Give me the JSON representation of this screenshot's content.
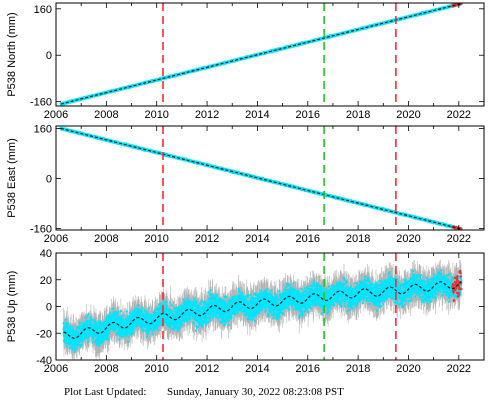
{
  "footer": {
    "label": "Plot Last Updated:",
    "timestamp": "Sunday, January 30, 2022 08:23:08 PST"
  },
  "colors": {
    "observations": "#00e5ff",
    "error_bars": "#b4b4b4",
    "model": "#1a1a1a",
    "recent_obs": "#ff2a2a",
    "event_red": "#ff2a2a",
    "event_green": "#22c422",
    "frame": "#000000"
  },
  "chart_data": [
    {
      "type": "scatter",
      "ylabel": "P538 North (mm)",
      "xlim": [
        2006.0,
        2023.0
      ],
      "ylim": [
        -175,
        180
      ],
      "yticks": [
        -160,
        0,
        160
      ],
      "xticks": [
        2006,
        2008,
        2010,
        2012,
        2014,
        2016,
        2018,
        2020,
        2022
      ],
      "trend_start": [
        2006.2,
        -168
      ],
      "trend_end": [
        2022.1,
        178
      ],
      "events": [
        {
          "x": 2010.25,
          "color": "red"
        },
        {
          "x": 2016.65,
          "color": "green"
        },
        {
          "x": 2019.5,
          "color": "red"
        }
      ],
      "grid": false
    },
    {
      "type": "scatter",
      "ylabel": "P538 East (mm)",
      "xlim": [
        2006.0,
        2023.0
      ],
      "ylim": [
        -165,
        168
      ],
      "yticks": [
        -160,
        0,
        160
      ],
      "xticks": [
        2006,
        2008,
        2010,
        2012,
        2014,
        2016,
        2018,
        2020,
        2022
      ],
      "trend_start": [
        2006.2,
        160
      ],
      "trend_end": [
        2022.1,
        -162
      ],
      "events": [
        {
          "x": 2010.25,
          "color": "red"
        },
        {
          "x": 2016.65,
          "color": "green"
        },
        {
          "x": 2019.5,
          "color": "red"
        }
      ],
      "grid": false
    },
    {
      "type": "scatter",
      "ylabel": "P538 Up (mm)",
      "xlim": [
        2006.0,
        2023.0
      ],
      "ylim": [
        -40,
        40
      ],
      "yticks": [
        -40,
        -20,
        0,
        20,
        40
      ],
      "xticks": [
        2006,
        2008,
        2010,
        2012,
        2014,
        2016,
        2018,
        2020,
        2022
      ],
      "trend_points": [
        [
          2006.3,
          -22
        ],
        [
          2007.0,
          -20
        ],
        [
          2008.0,
          -16
        ],
        [
          2009.0,
          -12
        ],
        [
          2010.0,
          -9
        ],
        [
          2011.0,
          -6
        ],
        [
          2012.0,
          -3
        ],
        [
          2013.0,
          0
        ],
        [
          2014.0,
          2
        ],
        [
          2015.0,
          4
        ],
        [
          2016.0,
          6
        ],
        [
          2017.0,
          8
        ],
        [
          2018.0,
          10
        ],
        [
          2019.0,
          11
        ],
        [
          2020.0,
          13
        ],
        [
          2021.0,
          15
        ],
        [
          2022.1,
          17
        ]
      ],
      "seasonal_amplitude": 3,
      "noise": 6,
      "error_bar": 9,
      "events": [
        {
          "x": 2010.25,
          "color": "red"
        },
        {
          "x": 2016.65,
          "color": "green"
        },
        {
          "x": 2019.5,
          "color": "red"
        }
      ],
      "grid": false
    }
  ]
}
